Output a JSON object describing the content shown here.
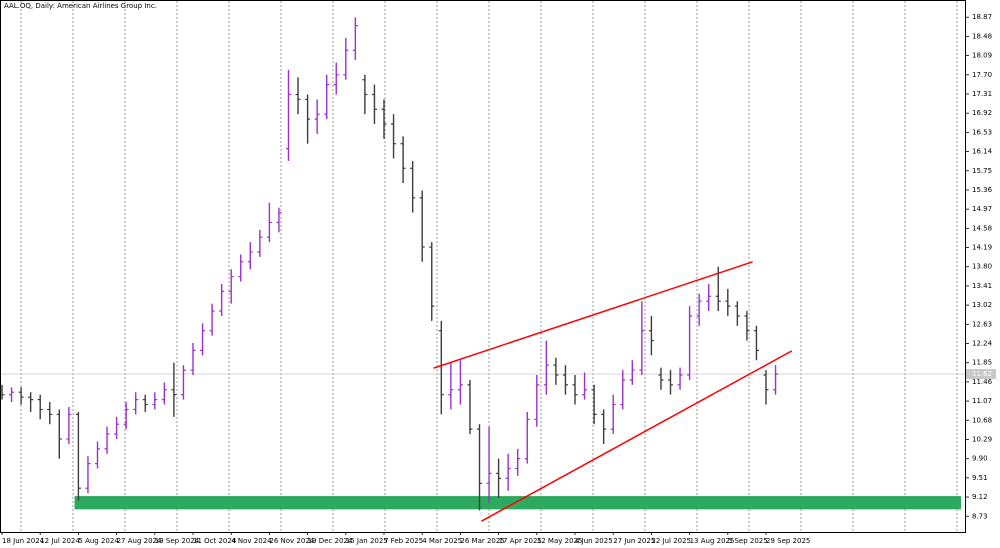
{
  "chart_data": {
    "type": "ohlc",
    "title": "AAL.OQ, Daily:  American Airlines Group Inc.",
    "categories": [
      "18 Jun 2024",
      null,
      null,
      null,
      "12 Jul 2024",
      null,
      null,
      null,
      "5 Aug 2024",
      null,
      null,
      null,
      "27 Aug 2024",
      null,
      null,
      null,
      "19 Sep 2024",
      null,
      null,
      null,
      "11 Oct 2024",
      null,
      null,
      null,
      "4 Nov 2024",
      null,
      null,
      null,
      "26 Nov 2024",
      null,
      null,
      null,
      "19 Dec 2024",
      null,
      null,
      null,
      "15 Jan 2025",
      null,
      null,
      null,
      "7 Feb 2025",
      null,
      null,
      null,
      "4 Mar 2025",
      null,
      null,
      null,
      "26 Mar 2025",
      null,
      null,
      null,
      "17 Apr 2025",
      null,
      null,
      null,
      "12 May 2025",
      null,
      null,
      null,
      "4 Jun 2025",
      null,
      null,
      null,
      "27 Jun 2025",
      null,
      null,
      null,
      "22 Jul 2025",
      null,
      null,
      null,
      "13 Aug 2025",
      null,
      null,
      null,
      "5 Sep 2025",
      null,
      null,
      null,
      "29 Sep 2025",
      null
    ],
    "open": [
      11.3,
      11.2,
      11.25,
      11.15,
      11.1,
      10.9,
      10.8,
      10.3,
      10.8,
      9.3,
      9.8,
      10.1,
      10.4,
      10.6,
      10.9,
      11.1,
      11.0,
      11.1,
      11.3,
      11.2,
      11.7,
      12.1,
      12.5,
      12.9,
      13.3,
      13.6,
      13.9,
      14.1,
      14.4,
      14.7,
      16.2,
      17.3,
      17.2,
      16.8,
      16.9,
      17.5,
      17.7,
      18.2,
      17.6,
      17.3,
      17.0,
      16.7,
      16.3,
      15.8,
      15.2,
      14.2,
      12.5,
      11.2,
      11.3,
      11.4,
      10.5,
      9.4,
      9.6,
      9.5,
      9.7,
      9.9,
      10.7,
      11.4,
      11.8,
      11.6,
      11.4,
      11.2,
      11.3,
      10.8,
      10.5,
      11.0,
      11.5,
      11.7,
      12.5,
      11.6,
      11.5,
      11.4,
      11.6,
      12.8,
      13.1,
      13.2,
      13.1,
      13.0,
      12.8,
      12.5,
      11.6,
      11.3
    ],
    "high": [
      11.4,
      11.35,
      11.35,
      11.25,
      11.2,
      11.05,
      10.9,
      10.95,
      10.85,
      9.95,
      10.25,
      10.55,
      10.75,
      11.05,
      11.25,
      11.2,
      11.25,
      11.45,
      11.85,
      11.8,
      12.25,
      12.65,
      13.05,
      13.45,
      13.75,
      14.05,
      14.3,
      14.55,
      15.1,
      15.0,
      17.8,
      17.65,
      17.3,
      17.2,
      17.7,
      17.95,
      18.45,
      18.87,
      17.7,
      17.5,
      17.2,
      16.9,
      16.45,
      15.95,
      15.35,
      14.3,
      12.7,
      11.85,
      11.9,
      11.5,
      10.6,
      10.55,
      9.9,
      10.0,
      10.1,
      10.85,
      11.6,
      12.3,
      11.95,
      11.8,
      11.6,
      11.65,
      11.4,
      10.9,
      11.2,
      11.7,
      11.9,
      13.1,
      12.8,
      11.75,
      11.7,
      11.75,
      13.0,
      13.25,
      13.45,
      13.8,
      13.35,
      13.1,
      12.9,
      12.6,
      11.7,
      11.8
    ],
    "low": [
      11.1,
      11.05,
      11.0,
      10.85,
      10.7,
      10.6,
      9.9,
      10.2,
      9.05,
      9.2,
      9.7,
      10.0,
      10.3,
      10.5,
      10.8,
      10.85,
      10.9,
      11.0,
      10.75,
      11.1,
      11.6,
      12.0,
      12.4,
      12.8,
      13.05,
      13.5,
      13.75,
      14.0,
      14.3,
      14.5,
      15.95,
      16.9,
      16.3,
      16.5,
      16.8,
      17.3,
      17.6,
      18.0,
      16.9,
      16.7,
      16.4,
      16.0,
      15.5,
      14.9,
      13.9,
      12.7,
      10.8,
      10.9,
      11.0,
      10.4,
      8.85,
      9.0,
      9.1,
      9.25,
      9.55,
      9.8,
      10.55,
      11.2,
      11.4,
      11.2,
      11.0,
      11.1,
      10.6,
      10.2,
      10.4,
      10.9,
      11.4,
      11.6,
      12.0,
      11.3,
      11.2,
      11.3,
      11.5,
      12.6,
      12.9,
      12.9,
      12.8,
      12.6,
      12.3,
      11.9,
      11.0,
      11.2
    ],
    "close": [
      11.2,
      11.25,
      11.15,
      11.1,
      10.9,
      10.8,
      10.3,
      10.8,
      9.3,
      9.8,
      10.1,
      10.4,
      10.6,
      10.9,
      11.1,
      11.0,
      11.1,
      11.3,
      11.2,
      11.7,
      12.1,
      12.5,
      12.9,
      13.3,
      13.6,
      13.9,
      14.1,
      14.4,
      14.7,
      14.9,
      17.3,
      17.2,
      16.8,
      16.9,
      17.5,
      17.7,
      18.2,
      18.7,
      17.3,
      17.0,
      16.7,
      16.3,
      15.8,
      15.2,
      14.2,
      13.0,
      11.2,
      11.3,
      11.4,
      10.5,
      9.4,
      9.6,
      9.5,
      9.7,
      9.9,
      10.7,
      11.4,
      11.8,
      11.6,
      11.4,
      11.2,
      11.3,
      10.8,
      10.5,
      11.0,
      11.5,
      11.7,
      12.5,
      12.3,
      11.5,
      11.4,
      11.6,
      12.8,
      13.1,
      13.2,
      13.1,
      13.0,
      12.8,
      12.5,
      12.1,
      11.3,
      11.62
    ],
    "up_color": "#9932cc",
    "down_color": "#3c3c3c",
    "ylim": [
      8.41,
      19.22
    ],
    "yticks": [
      18.87,
      18.48,
      18.09,
      {
        "value": 17.7,
        "label": "17.70"
      },
      17.31,
      16.92,
      16.53,
      16.14,
      15.75,
      15.36,
      14.97,
      14.58,
      14.19,
      {
        "value": 13.8,
        "label": "13.80"
      },
      13.41,
      13.02,
      12.63,
      12.24,
      11.85,
      11.46,
      11.07,
      10.68,
      10.29,
      {
        "value": 9.9,
        "label": "9.90"
      },
      9.51,
      9.12,
      8.73
    ],
    "current_price": 11.62,
    "trendlines": [
      {
        "start_index": 45.2,
        "start_price": 11.74,
        "end_index": 78.6,
        "end_price": 13.9,
        "color": "#ff0000"
      },
      {
        "start_index": 50.2,
        "start_price": 8.63,
        "end_index": 82.7,
        "end_price": 12.09,
        "color": "#ff0000"
      }
    ],
    "zone": {
      "start_index": 7.6,
      "low": 8.87,
      "high": 9.14,
      "color": "#2eaa60"
    }
  }
}
